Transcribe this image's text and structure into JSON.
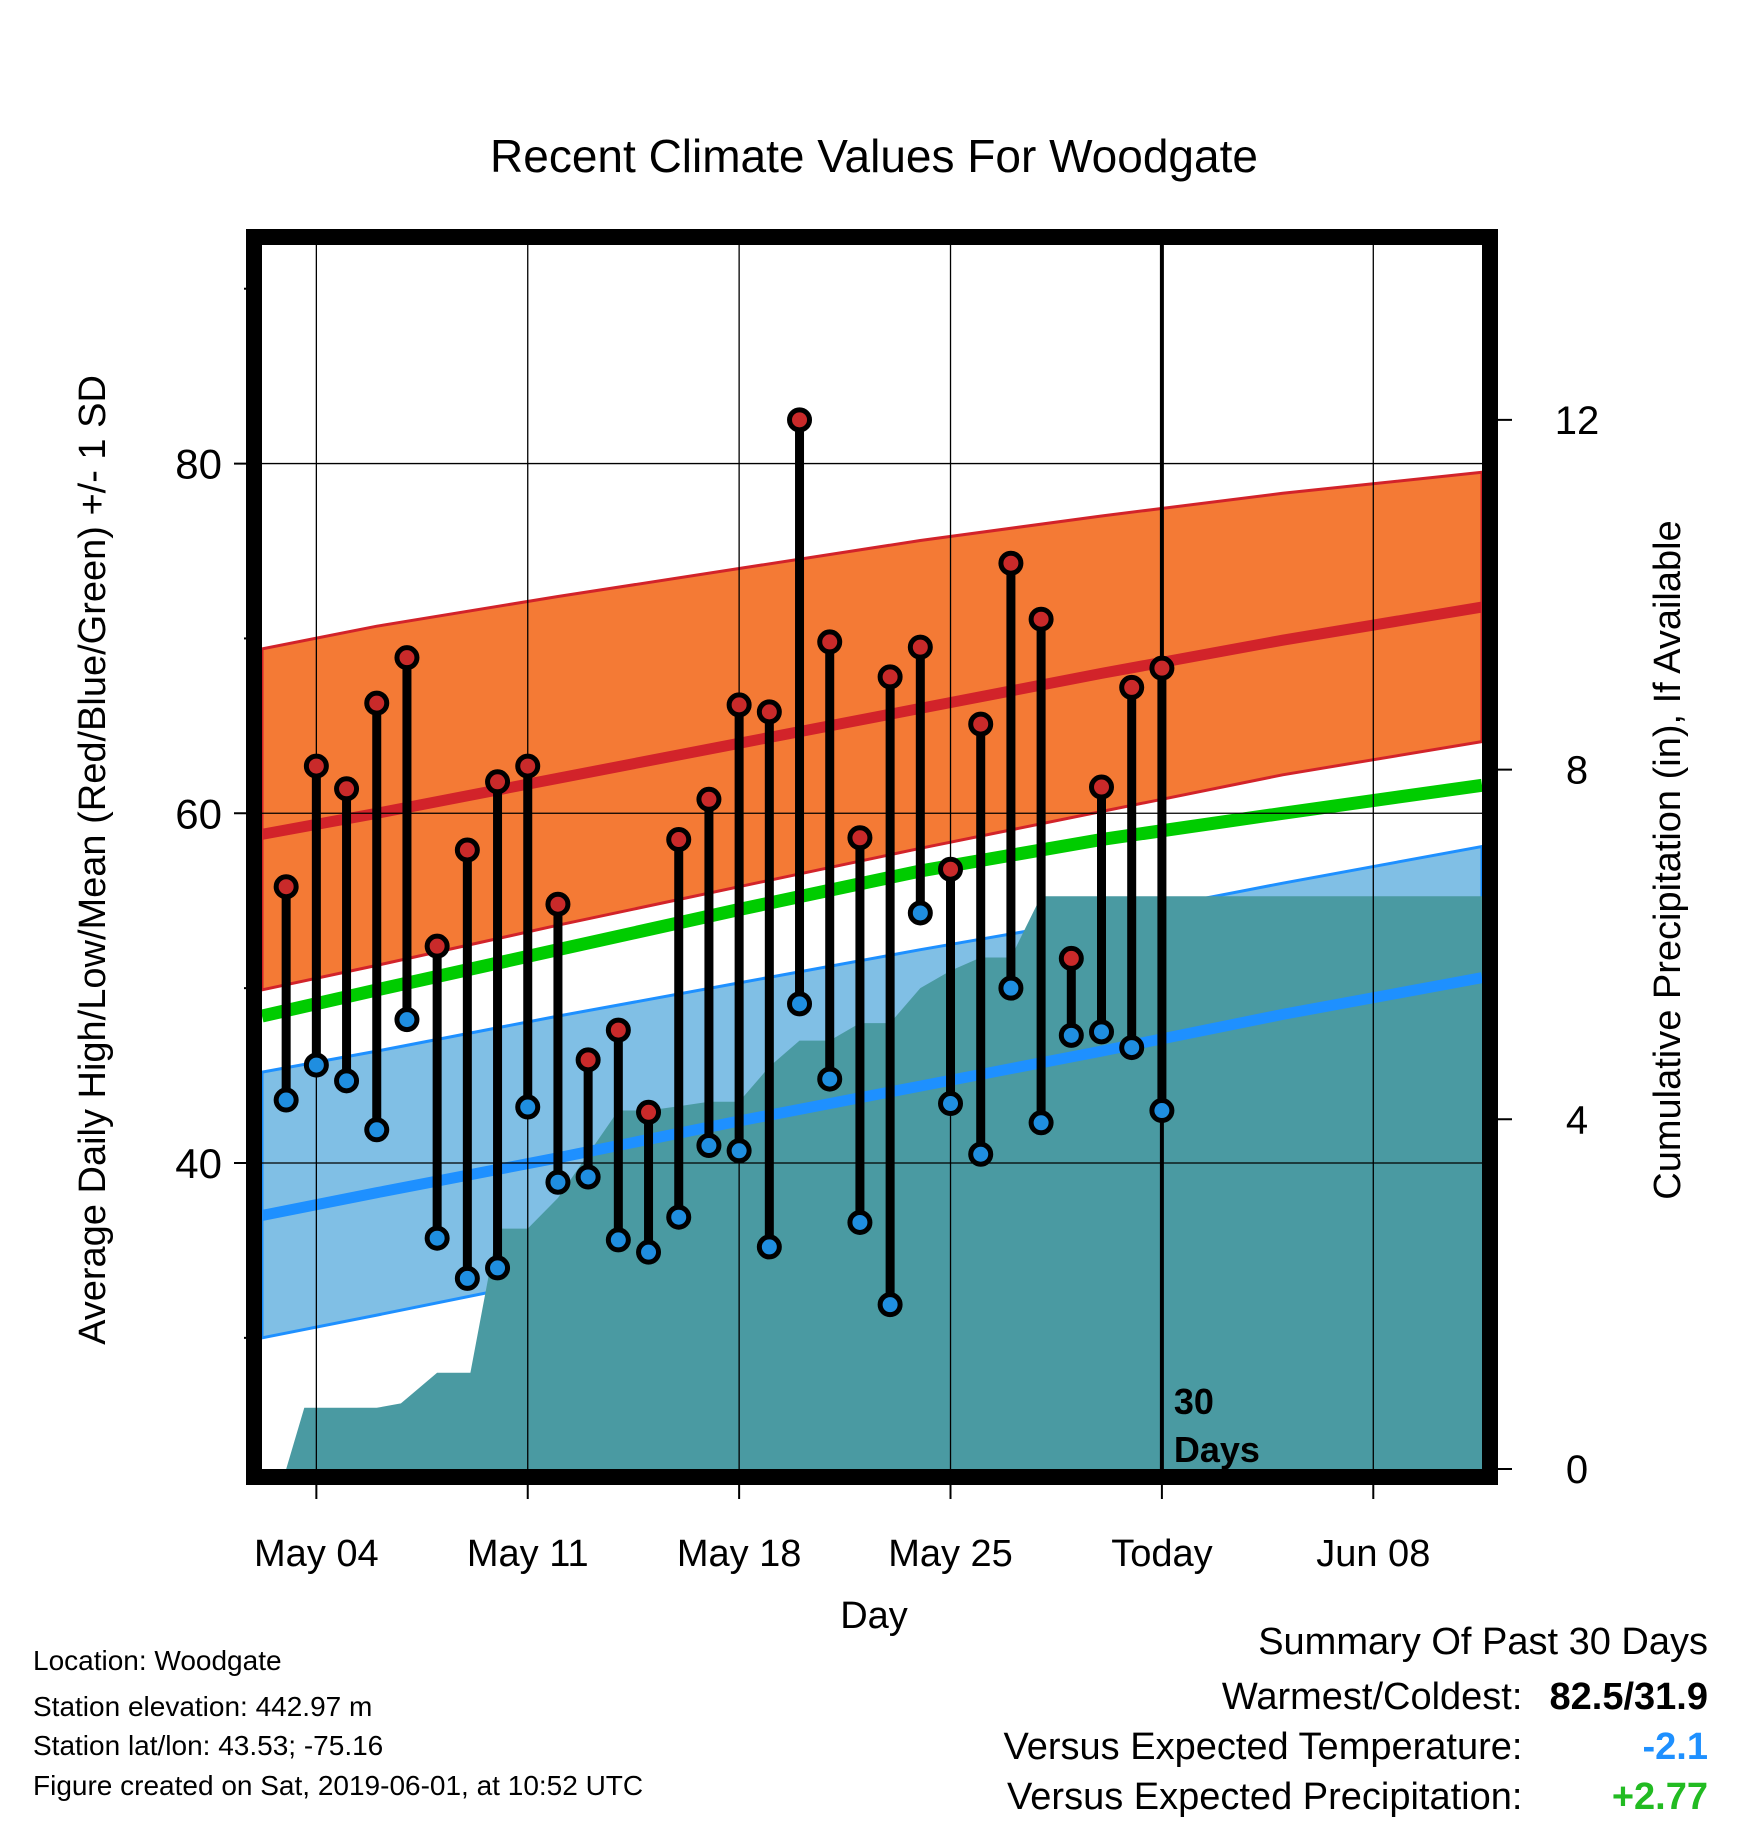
{
  "chart_data": {
    "type": "line",
    "title": "Recent Climate Values For Woodgate",
    "xlabel": "Day",
    "ylabel_left": "Average Daily High/Low/Mean (Red/Blue/Green) +/- 1 SD",
    "ylabel_right": "Cumulative Precipitation (in), If Available",
    "xlim_days": [
      -29.8,
      10.6
    ],
    "ylim_left": [
      22.5,
      92.5
    ],
    "yticks_left": [
      80,
      60,
      40
    ],
    "yticks_right": [
      12,
      8,
      4,
      0
    ],
    "right_axis_units_per_left_unit": 0.2,
    "xticks": [
      {
        "label": "May 04",
        "day": -28
      },
      {
        "label": "May 11",
        "day": -21
      },
      {
        "label": "May 18",
        "day": -14
      },
      {
        "label": "May 25",
        "day": -7
      },
      {
        "label": "Today",
        "day": 0
      },
      {
        "label": "Jun 08",
        "day": 7
      }
    ],
    "today_day": 0,
    "today_label": [
      "30",
      "Days"
    ],
    "normals": {
      "days": [
        -29.8,
        -26,
        -20,
        -14,
        -8,
        -2,
        4,
        10.6
      ],
      "high_upper": [
        69.4,
        70.7,
        72.4,
        74.0,
        75.6,
        77.0,
        78.3,
        79.5
      ],
      "high_mean": [
        58.8,
        60.0,
        62.0,
        64.0,
        66.0,
        68.0,
        69.9,
        71.8
      ],
      "high_lower": [
        49.9,
        51.3,
        53.6,
        55.8,
        58.0,
        60.1,
        62.2,
        64.1
      ],
      "avg_mean": [
        48.4,
        49.9,
        52.2,
        54.5,
        56.7,
        58.5,
        60.0,
        61.6
      ],
      "low_upper": [
        45.2,
        46.4,
        48.4,
        50.3,
        52.2,
        54.0,
        56.0,
        58.1
      ],
      "low_mean": [
        37.0,
        38.3,
        40.3,
        42.4,
        44.4,
        46.4,
        48.5,
        50.6
      ],
      "low_lower": [
        30.0,
        31.3,
        33.4,
        35.4,
        37.4,
        39.4,
        41.6,
        43.9
      ]
    },
    "daily": {
      "days": [
        -29,
        -28,
        -27,
        -26,
        -25,
        -24,
        -23,
        -22,
        -21,
        -20,
        -19,
        -18,
        -17,
        -16,
        -15,
        -14,
        -13,
        -12,
        -11,
        -10,
        -9,
        -8,
        -7,
        -6,
        -5,
        -4,
        -3,
        -2,
        -1
      ],
      "high": [
        55.8,
        62.7,
        61.4,
        66.3,
        68.9,
        52.4,
        57.9,
        61.8,
        62.7,
        54.8,
        45.9,
        47.6,
        42.9,
        58.5,
        60.8,
        66.2,
        65.8,
        82.5,
        69.8,
        58.6,
        67.8,
        69.5,
        56.8,
        65.1,
        74.3,
        71.1,
        51.7,
        61.5,
        67.2
      ],
      "low": [
        43.6,
        45.6,
        44.7,
        41.9,
        48.2,
        35.7,
        33.4,
        34.0,
        43.2,
        38.9,
        39.2,
        35.6,
        34.9,
        36.9,
        41.0,
        40.7,
        35.2,
        49.1,
        44.8,
        36.6,
        31.9,
        54.3,
        43.4,
        40.5,
        50.0,
        42.3,
        47.3,
        47.5,
        46.6
      ]
    },
    "extra_day": {
      "day": 0,
      "high": 68.3,
      "low": 43.0
    },
    "precip": {
      "days": [
        -29.8,
        -29.0,
        -28.4,
        -26.0,
        -25.2,
        -24.0,
        -22.9,
        -22.0,
        -21.0,
        -20.0,
        -19.0,
        -18.0,
        -17.0,
        -16.0,
        -15.0,
        -14.0,
        -13.0,
        -12.0,
        -11.0,
        -10.0,
        -9.0,
        -8.0,
        -7.0,
        -6.0,
        -5.0,
        -4.0,
        -3.0,
        -2.0,
        -1.0,
        0.0,
        10.6
      ],
      "values": [
        0.0,
        0.0,
        0.7,
        0.7,
        0.75,
        1.1,
        1.1,
        2.75,
        2.75,
        3.1,
        3.6,
        4.1,
        4.1,
        4.15,
        4.2,
        4.2,
        4.6,
        4.9,
        4.9,
        5.1,
        5.1,
        5.5,
        5.7,
        5.85,
        5.85,
        6.55,
        6.55,
        6.55,
        6.55,
        6.55,
        6.55
      ]
    },
    "colors": {
      "high_band": "#f47a35",
      "high_line": "#d2232a",
      "avg_line": "#00cc00",
      "low_band": "#80bfe5",
      "low_line": "#1e90ff",
      "precip": "#4a9aa2",
      "high_dot": "#c92a2a",
      "low_dot": "#1f8ee0"
    },
    "grid": true
  },
  "info": {
    "location": "Location: Woodgate",
    "elevation": "Station elevation: 442.97 m",
    "latlon": "Station lat/lon: 43.53; -75.16",
    "created": "Figure created on Sat, 2019-06-01, at 10:52 UTC"
  },
  "summary": {
    "title": "Summary Of Past 30 Days",
    "warmest_label": "Warmest/Coldest:",
    "warmest_value": "82.5/31.9",
    "temp_label": "Versus Expected Temperature:",
    "temp_value": "-2.1",
    "temp_color": "#1e90ff",
    "precip_label": "Versus Expected Precipitation:",
    "precip_value": "+2.77",
    "precip_color": "#22bb22"
  }
}
